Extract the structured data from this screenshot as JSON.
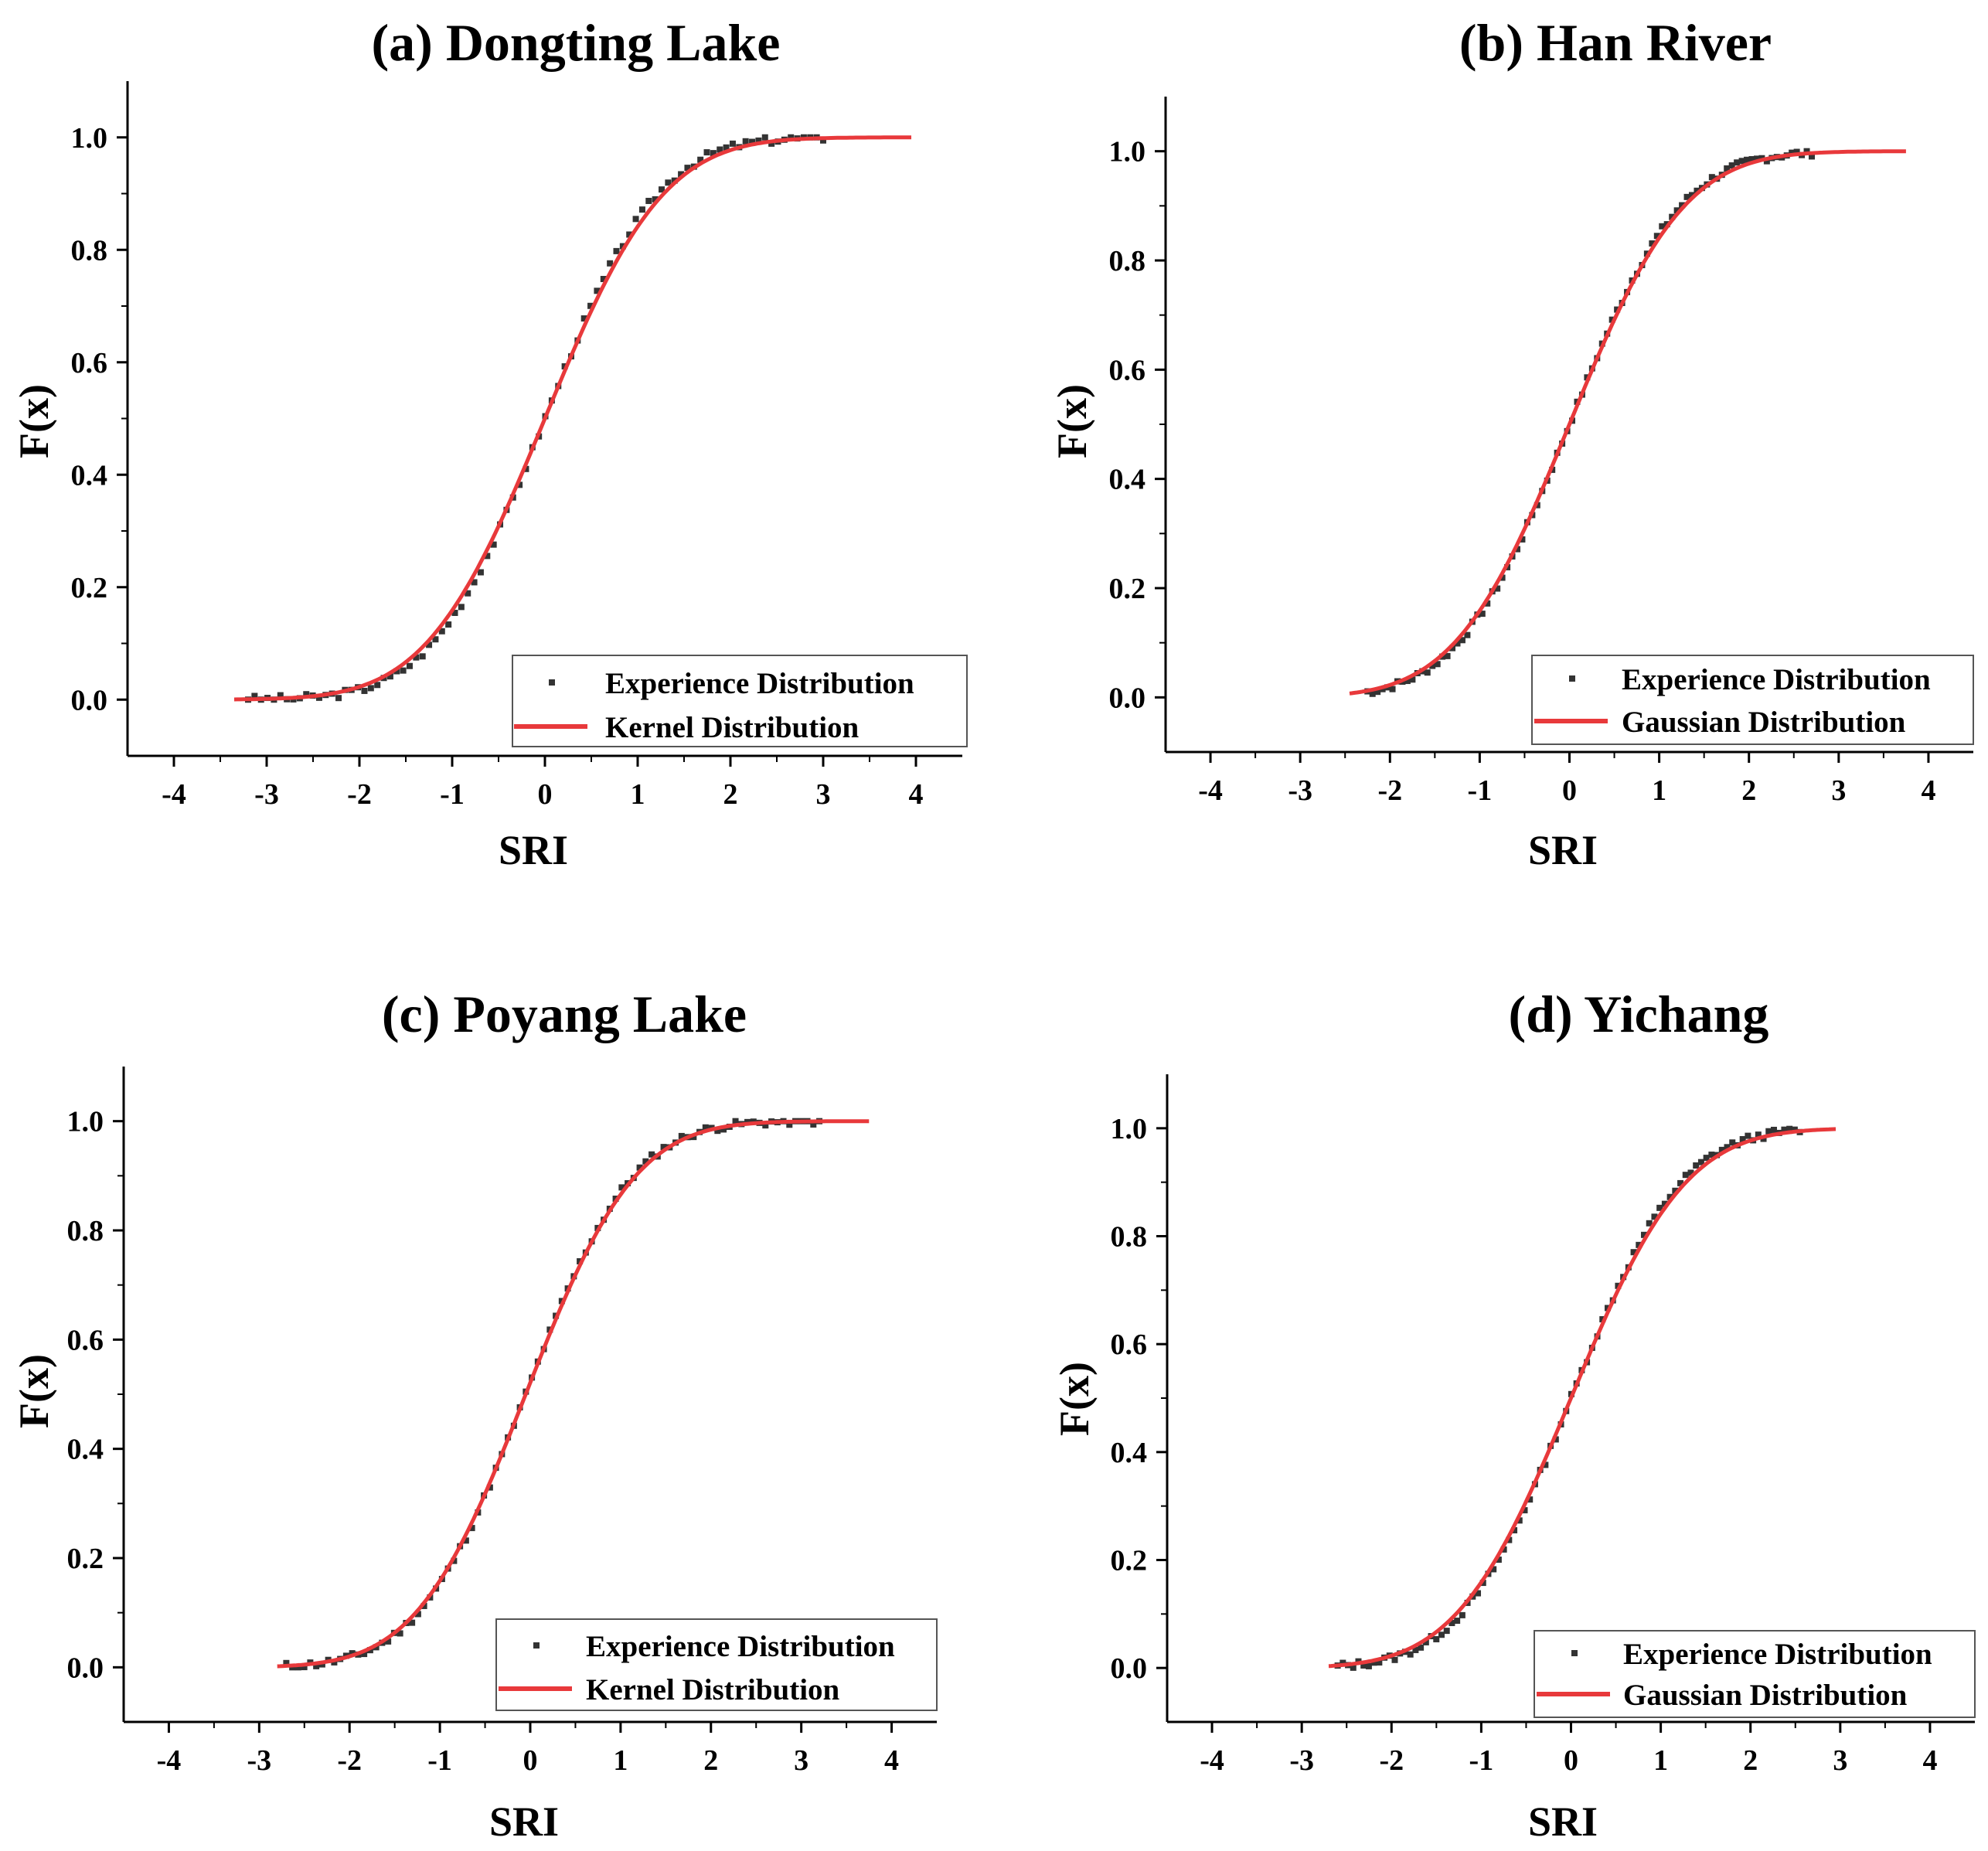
{
  "chart_data": [
    {
      "type": "line",
      "title": "(a) Dongting Lake",
      "xlabel": "SRI",
      "ylabel": "F(x)",
      "xlim": [
        -4.5,
        4.5
      ],
      "ylim": [
        -0.1,
        1.1
      ],
      "xticks": [
        -4,
        -3,
        -2,
        -1,
        0,
        1,
        2,
        3,
        4
      ],
      "yticks": [
        0.0,
        0.2,
        0.4,
        0.6,
        0.8,
        1.0
      ],
      "xtick_labels": [
        "-4",
        "-3",
        "-2",
        "-1",
        "0",
        "1",
        "2",
        "3",
        "4"
      ],
      "ytick_labels": [
        "0.0",
        "0.2",
        "0.4",
        "0.6",
        "0.8",
        "1.0"
      ],
      "legend": "bottom-right",
      "series": [
        {
          "name": "Experience Distribution",
          "kind": "scatter",
          "color": "#333333",
          "x_range": [
            -3.2,
            3.0
          ],
          "mean": 0.0,
          "sd": 0.95,
          "n": 90,
          "sample_seed": 3
        },
        {
          "name": "Kernel Distribution",
          "kind": "line",
          "color": "#e8393b",
          "x_range": [
            -3.35,
            3.95
          ],
          "mean": 0.0,
          "sd": 1.0
        }
      ]
    },
    {
      "type": "line",
      "title": "(b) Han River",
      "xlabel": "SRI",
      "ylabel": "F(x)",
      "xlim": [
        -4.5,
        4.5
      ],
      "ylim": [
        -0.1,
        1.1
      ],
      "xticks": [
        -4,
        -3,
        -2,
        -1,
        0,
        1,
        2,
        3,
        4
      ],
      "yticks": [
        0.0,
        0.2,
        0.4,
        0.6,
        0.8,
        1.0
      ],
      "xtick_labels": [
        "-4",
        "-3",
        "-2",
        "-1",
        "0",
        "1",
        "2",
        "3",
        "4"
      ],
      "ytick_labels": [
        "0.0",
        "0.2",
        "0.4",
        "0.6",
        "0.8",
        "1.0"
      ],
      "legend": "bottom-right",
      "series": [
        {
          "name": "Experience Distribution",
          "kind": "scatter",
          "color": "#333333",
          "x_range": [
            -2.25,
            2.7
          ],
          "mean": 0.0,
          "sd": 0.97,
          "n": 90,
          "sample_seed": 7
        },
        {
          "name": "Gaussian Distribution",
          "kind": "line",
          "color": "#e8393b",
          "x_range": [
            -2.45,
            3.75
          ],
          "mean": 0.0,
          "sd": 1.0
        }
      ]
    },
    {
      "type": "line",
      "title": "(c) Poyang Lake",
      "xlabel": "SRI",
      "ylabel": "F(x)",
      "xlim": [
        -4.5,
        4.5
      ],
      "ylim": [
        -0.1,
        1.1
      ],
      "xticks": [
        -4,
        -3,
        -2,
        -1,
        0,
        1,
        2,
        3,
        4
      ],
      "yticks": [
        0.0,
        0.2,
        0.4,
        0.6,
        0.8,
        1.0
      ],
      "xtick_labels": [
        "-4",
        "-3",
        "-2",
        "-1",
        "0",
        "1",
        "2",
        "3",
        "4"
      ],
      "ytick_labels": [
        "0.0",
        "0.2",
        "0.4",
        "0.6",
        "0.8",
        "1.0"
      ],
      "legend": "bottom-right",
      "series": [
        {
          "name": "Experience Distribution",
          "kind": "scatter",
          "color": "#333333",
          "x_range": [
            -2.7,
            3.2
          ],
          "mean": -0.05,
          "sd": 0.93,
          "n": 90,
          "sample_seed": 11
        },
        {
          "name": "Kernel Distribution",
          "kind": "line",
          "color": "#e8393b",
          "x_range": [
            -2.8,
            3.75
          ],
          "mean": -0.05,
          "sd": 0.95
        }
      ]
    },
    {
      "type": "line",
      "title": "(d) Yichang",
      "xlabel": "SRI",
      "ylabel": "F(x)",
      "xlim": [
        -4.5,
        4.5
      ],
      "ylim": [
        -0.1,
        1.1
      ],
      "xticks": [
        -4,
        -3,
        -2,
        -1,
        0,
        1,
        2,
        3,
        4
      ],
      "yticks": [
        0.0,
        0.2,
        0.4,
        0.6,
        0.8,
        1.0
      ],
      "xtick_labels": [
        "-4",
        "-3",
        "-2",
        "-1",
        "0",
        "1",
        "2",
        "3",
        "4"
      ],
      "ytick_labels": [
        "0.0",
        "0.2",
        "0.4",
        "0.6",
        "0.8",
        "1.0"
      ],
      "legend": "bottom-right",
      "series": [
        {
          "name": "Experience Distribution",
          "kind": "scatter",
          "color": "#333333",
          "x_range": [
            -2.6,
            2.55
          ],
          "mean": 0.0,
          "sd": 0.96,
          "n": 90,
          "sample_seed": 13
        },
        {
          "name": "Gaussian Distribution",
          "kind": "line",
          "color": "#e8393b",
          "x_range": [
            -2.7,
            2.95
          ],
          "mean": 0.0,
          "sd": 1.0
        }
      ]
    }
  ]
}
